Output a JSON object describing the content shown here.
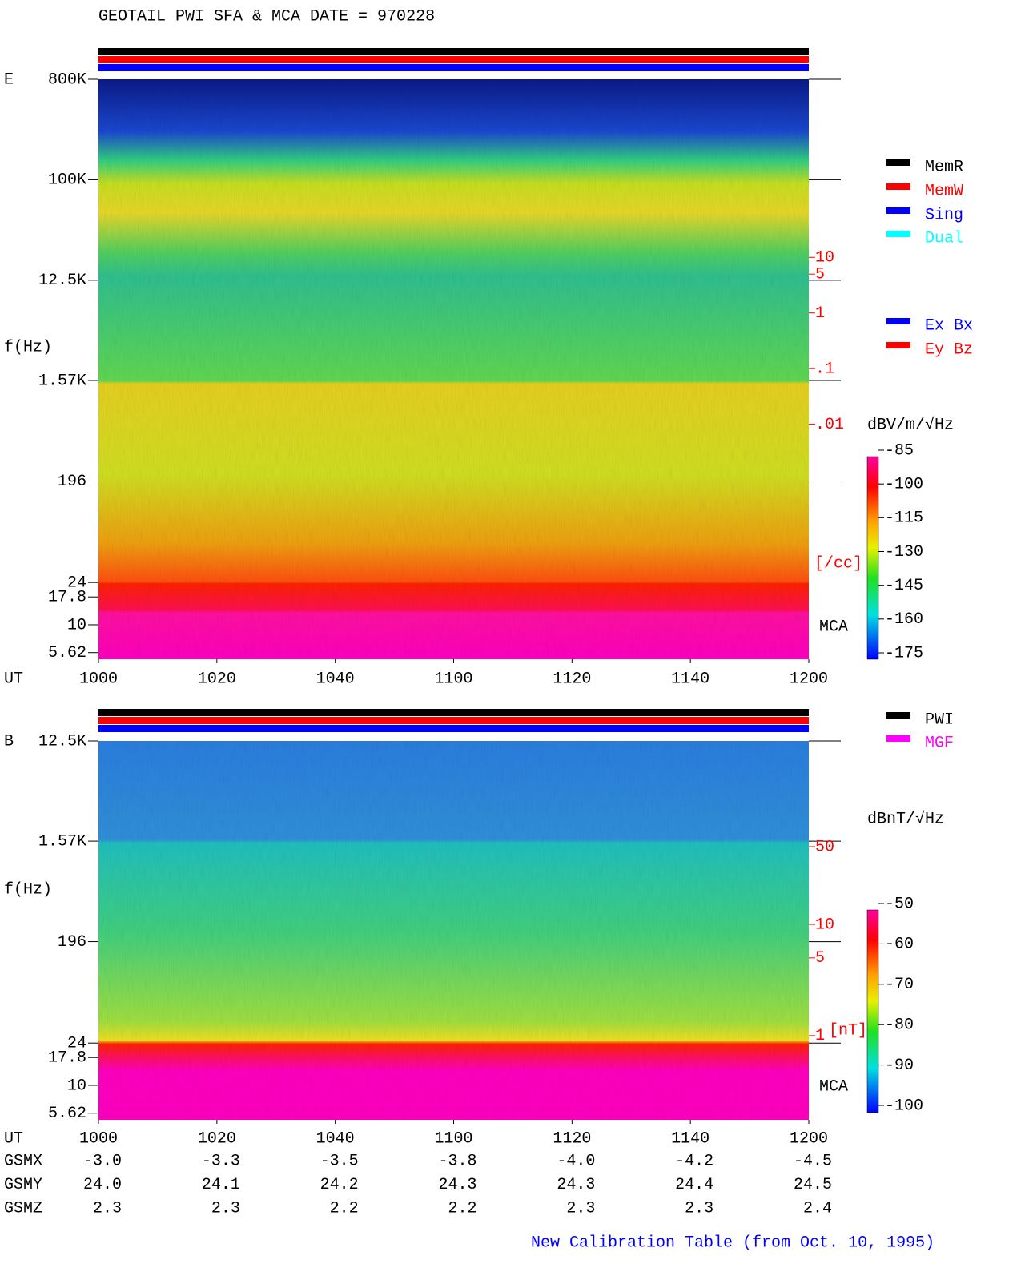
{
  "chart_data": {
    "type": "spectrogram",
    "title": "GEOTAIL   PWI SFA & MCA   DATE = 970228",
    "footer": "New Calibration Table (from Oct. 10, 1995)",
    "time_axis": {
      "label": "UT",
      "ticks": [
        "1000",
        "1020",
        "1040",
        "1100",
        "1120",
        "1140",
        "1200"
      ]
    },
    "panels": [
      {
        "label": "E",
        "ylabel": "f(Hz)",
        "log_y": true,
        "ylim": [
          4.9,
          800000
        ],
        "yticks": [
          {
            "value": 800000,
            "label": "800K"
          },
          {
            "value": 100000,
            "label": "100K"
          },
          {
            "value": 12500,
            "label": "12.5K"
          },
          {
            "value": 1570,
            "label": "1.57K"
          },
          196,
          24,
          17.8,
          10,
          5.62
        ],
        "mca_label": "MCA",
        "right_scale": {
          "color": "#ff0000",
          "unit": "[/cc]",
          "ticks": [
            {
              "value": 10,
              "label": "10"
            },
            {
              "value": 5,
              "label": "5"
            },
            {
              "value": 1,
              "label": "1"
            },
            {
              "value": 0.1,
              "label": ".1"
            },
            {
              "value": 0.01,
              "label": ".01"
            }
          ]
        },
        "colorbar": {
          "unit": "dBV/m/√Hz",
          "lim": [
            -85,
            -175
          ],
          "ticks": [
            -85,
            -100,
            -115,
            -130,
            -145,
            -160,
            -175
          ]
        },
        "legend": [
          {
            "name": "MemR",
            "color": "#000000"
          },
          {
            "name": "MemW",
            "color": "#ff0000"
          },
          {
            "name": "Sing",
            "color": "#0000ff"
          },
          {
            "name": "Dual",
            "color": "#00ffff"
          },
          {
            "name": "Ex Bx",
            "color": "#0000ff"
          },
          {
            "name": "Ey Bz",
            "color": "#ff0000"
          }
        ]
      },
      {
        "label": "B",
        "ylabel": "f(Hz)",
        "log_y": true,
        "ylim": [
          4.9,
          12500
        ],
        "yticks": [
          {
            "value": 12500,
            "label": "12.5K"
          },
          {
            "value": 1570,
            "label": "1.57K"
          },
          196,
          24,
          17.8,
          10,
          5.62
        ],
        "mca_label": "MCA",
        "right_scale": {
          "color": "#ff0000",
          "unit": "[nT]",
          "ticks": [
            {
              "value": 50,
              "label": "50"
            },
            {
              "value": 10,
              "label": "10"
            },
            {
              "value": 5,
              "label": "5"
            },
            {
              "value": 1,
              "label": "1"
            }
          ]
        },
        "colorbar": {
          "unit": "dBnT/√Hz",
          "lim": [
            -50,
            -100
          ],
          "ticks": [
            -50,
            -60,
            -70,
            -80,
            -90,
            -100
          ]
        },
        "legend": [
          {
            "name": "PWI",
            "color": "#000000"
          },
          {
            "name": "MGF",
            "color": "#ff00ff"
          }
        ]
      }
    ],
    "orbit": [
      {
        "label": "GSMX",
        "values": [
          -3.0,
          -3.3,
          -3.5,
          -3.8,
          -4.0,
          -4.2,
          -4.5
        ],
        "value_labels": [
          "-3.0",
          "-3.3",
          "-3.5",
          "-3.8",
          "-4.0",
          "-4.2",
          "-4.5"
        ]
      },
      {
        "label": "GSMY",
        "values": [
          24.0,
          24.1,
          24.2,
          24.3,
          24.3,
          24.4,
          24.5
        ],
        "value_labels": [
          "24.0",
          "24.1",
          "24.2",
          "24.3",
          "24.3",
          "24.4",
          "24.5"
        ]
      },
      {
        "label": "GSMZ",
        "values": [
          2.3,
          2.3,
          2.2,
          2.2,
          2.3,
          2.3,
          2.4
        ],
        "value_labels": [
          "2.3",
          "2.3",
          "2.2",
          "2.2",
          "2.3",
          "2.3",
          "2.4"
        ]
      }
    ]
  }
}
